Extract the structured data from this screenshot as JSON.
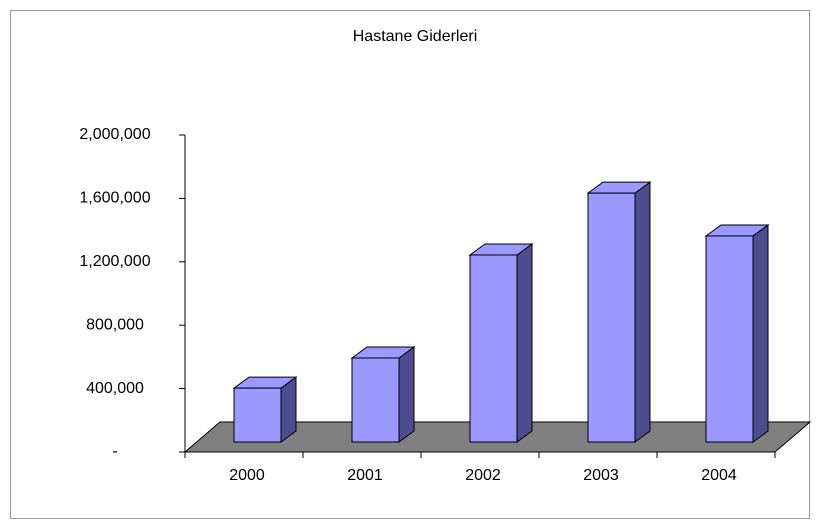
{
  "chart_data": {
    "type": "bar3d",
    "title": "Hastane Giderleri",
    "categories": [
      "2000",
      "2001",
      "2002",
      "2003",
      "2004"
    ],
    "values": [
      340000,
      530000,
      1180000,
      1570000,
      1300000
    ],
    "color": "#9999ff",
    "side_color": "#4d4d8f",
    "floor_color": "#808080",
    "ylim": [
      0,
      2000000
    ],
    "yticks": [
      {
        "value": 0,
        "label": "-"
      },
      {
        "value": 400000,
        "label": "400,000"
      },
      {
        "value": 800000,
        "label": "800,000"
      },
      {
        "value": 1200000,
        "label": "1,200,000"
      },
      {
        "value": 1600000,
        "label": "1,600,000"
      },
      {
        "value": 2000000,
        "label": "2,000,000"
      }
    ]
  }
}
